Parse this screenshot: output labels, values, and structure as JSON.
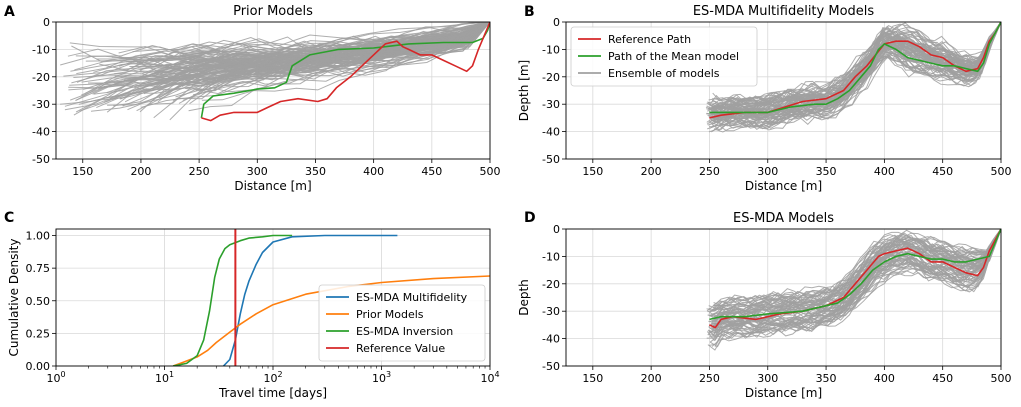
{
  "colors": {
    "reference": "#d62728",
    "mean": "#2ca02c",
    "ensemble": "#a0a0a0",
    "blue": "#1f77b4",
    "orange": "#ff7f0e",
    "green": "#2ca02c",
    "grid": "#d9d9d9"
  },
  "chart_data": [
    {
      "id": "A",
      "panel_label": "A",
      "type": "line",
      "title": "Prior Models",
      "xlabel": "Distance [m]",
      "ylabel": "",
      "xlim": [
        127,
        500
      ],
      "ylim": [
        -50,
        0
      ],
      "xticks": [
        150,
        200,
        250,
        300,
        350,
        400,
        450,
        500
      ],
      "yticks": [
        0,
        -10,
        -20,
        -30,
        -40,
        -50
      ],
      "grid": true,
      "ensemble": {
        "name": "Ensemble of models",
        "count": 130,
        "x_start_range": [
          130,
          262
        ],
        "spread": "wide"
      },
      "series": [
        {
          "name": "Path of the Mean model",
          "color_key": "mean",
          "x": [
            252,
            254,
            262,
            280,
            300,
            315,
            325,
            330,
            345,
            370,
            400,
            430,
            460,
            485,
            494,
            498,
            500
          ],
          "y": [
            -35,
            -30,
            -27,
            -26,
            -24.5,
            -24,
            -22,
            -16,
            -12,
            -10,
            -9.5,
            -8,
            -7.5,
            -7.5,
            -6,
            -3,
            0
          ]
        },
        {
          "name": "Reference Path",
          "color_key": "reference",
          "x": [
            252,
            260,
            268,
            280,
            300,
            310,
            320,
            335,
            352,
            360,
            368,
            380,
            400,
            410,
            420,
            425,
            430,
            440,
            450,
            460,
            470,
            480,
            485,
            490,
            495,
            500
          ],
          "y": [
            -35,
            -36,
            -34,
            -33,
            -33,
            -31,
            -29,
            -28,
            -29,
            -28,
            -24,
            -20,
            -12,
            -8,
            -7,
            -9,
            -10,
            -12,
            -12,
            -14,
            -16,
            -18,
            -16,
            -10,
            -5,
            0
          ]
        }
      ]
    },
    {
      "id": "B",
      "panel_label": "B",
      "type": "line",
      "title": "ES-MDA Multifidelity Models",
      "xlabel": "Distance [m]",
      "ylabel": "Depth [m]",
      "xlim": [
        127,
        500
      ],
      "ylim": [
        -50,
        0
      ],
      "xticks": [
        150,
        200,
        250,
        300,
        350,
        400,
        450,
        500
      ],
      "yticks": [
        0,
        -10,
        -20,
        -30,
        -40,
        -50
      ],
      "grid": true,
      "legend": {
        "position": "upper-left",
        "entries": [
          "Reference Path",
          "Path of the Mean model",
          "Ensemble of models"
        ]
      },
      "ensemble": {
        "name": "Ensemble of models",
        "count": 80,
        "spread": "narrow"
      },
      "series": [
        {
          "name": "Reference Path",
          "color_key": "reference",
          "x": [
            250,
            260,
            280,
            300,
            330,
            350,
            365,
            375,
            385,
            400,
            410,
            420,
            430,
            440,
            450,
            460,
            470,
            480,
            485,
            490,
            495,
            500
          ],
          "y": [
            -35,
            -34,
            -33,
            -33,
            -29,
            -28,
            -25,
            -20,
            -16,
            -8,
            -7,
            -7,
            -9,
            -12,
            -13,
            -16,
            -18,
            -17,
            -13,
            -7,
            -4,
            0
          ]
        },
        {
          "name": "Path of the Mean model",
          "color_key": "mean",
          "x": [
            250,
            260,
            280,
            300,
            320,
            340,
            350,
            360,
            370,
            380,
            388,
            395,
            400,
            410,
            420,
            430,
            440,
            450,
            460,
            470,
            480,
            485,
            490,
            495,
            500
          ],
          "y": [
            -33,
            -33,
            -33,
            -33,
            -31,
            -30,
            -30,
            -28,
            -25,
            -20,
            -16,
            -10,
            -8,
            -10,
            -13,
            -14,
            -15,
            -16,
            -16,
            -17,
            -18,
            -15,
            -8,
            -4,
            0
          ]
        }
      ]
    },
    {
      "id": "C",
      "panel_label": "C",
      "type": "line",
      "xscale": "log",
      "title": "",
      "xlabel": "Travel time [days]",
      "ylabel": "Cumulative Density",
      "xlim": [
        1,
        10000
      ],
      "ylim": [
        0,
        1.05
      ],
      "xtick_labels": [
        "10^0",
        "10^1",
        "10^2",
        "10^3",
        "10^4"
      ],
      "ytick_labels": [
        "0.00",
        "0.25",
        "0.50",
        "0.75",
        "1.00"
      ],
      "grid": true,
      "legend": {
        "position": "lower-right",
        "entries": [
          "ES-MDA Multifidelity",
          "Prior Models",
          "ES-MDA Inversion",
          "Reference Value"
        ]
      },
      "series": [
        {
          "name": "ES-MDA Multifidelity",
          "color_key": "blue",
          "x": [
            35,
            40,
            45,
            50,
            55,
            60,
            70,
            80,
            100,
            150,
            300,
            1400
          ],
          "y": [
            0,
            0.05,
            0.2,
            0.4,
            0.55,
            0.65,
            0.78,
            0.87,
            0.95,
            0.99,
            1.0,
            1.0
          ]
        },
        {
          "name": "Prior Models",
          "color_key": "orange",
          "x": [
            12,
            15,
            20,
            25,
            30,
            40,
            50,
            70,
            100,
            200,
            500,
            1000,
            3000,
            10000
          ],
          "y": [
            0,
            0.03,
            0.07,
            0.12,
            0.18,
            0.26,
            0.32,
            0.4,
            0.47,
            0.55,
            0.61,
            0.64,
            0.67,
            0.69
          ]
        },
        {
          "name": "ES-MDA Inversion",
          "color_key": "green",
          "x": [
            12,
            16,
            20,
            23,
            26,
            29,
            32,
            36,
            40,
            50,
            60,
            80,
            100,
            150
          ],
          "y": [
            0,
            0.02,
            0.08,
            0.2,
            0.42,
            0.68,
            0.82,
            0.9,
            0.93,
            0.96,
            0.98,
            0.99,
            1.0,
            1.0
          ]
        },
        {
          "name": "Reference Value",
          "color_key": "reference",
          "x_value": 45
        }
      ]
    },
    {
      "id": "D",
      "panel_label": "D",
      "type": "line",
      "title": "ES-MDA Models",
      "xlabel": "Distance [m]",
      "ylabel": "Depth",
      "xlim": [
        127,
        500
      ],
      "ylim": [
        -50,
        0
      ],
      "xticks": [
        150,
        200,
        250,
        300,
        350,
        400,
        450,
        500
      ],
      "yticks": [
        0,
        -10,
        -20,
        -30,
        -40,
        -50
      ],
      "grid": true,
      "ensemble": {
        "name": "Ensemble of models",
        "count": 70,
        "spread": "medium"
      },
      "series": [
        {
          "name": "Reference Path",
          "color_key": "reference",
          "x": [
            250,
            255,
            260,
            270,
            290,
            300,
            310,
            330,
            350,
            365,
            375,
            385,
            395,
            400,
            410,
            420,
            430,
            440,
            450,
            460,
            470,
            480,
            485,
            490,
            495,
            500
          ],
          "y": [
            -35,
            -36,
            -33,
            -32,
            -33,
            -32,
            -31,
            -30,
            -28,
            -25,
            -20,
            -15,
            -10,
            -9,
            -8,
            -7,
            -9,
            -12,
            -12,
            -14,
            -16,
            -17,
            -14,
            -8,
            -4,
            0
          ]
        },
        {
          "name": "Path of the Mean model",
          "color_key": "mean",
          "x": [
            250,
            260,
            280,
            300,
            330,
            350,
            360,
            370,
            380,
            390,
            400,
            410,
            420,
            430,
            440,
            450,
            460,
            470,
            480,
            490,
            495,
            500
          ],
          "y": [
            -33,
            -32,
            -32,
            -31,
            -30,
            -28,
            -27,
            -24,
            -20,
            -15,
            -12,
            -10,
            -9,
            -10,
            -11,
            -11,
            -12,
            -12,
            -11,
            -10,
            -5,
            0
          ]
        }
      ]
    }
  ]
}
